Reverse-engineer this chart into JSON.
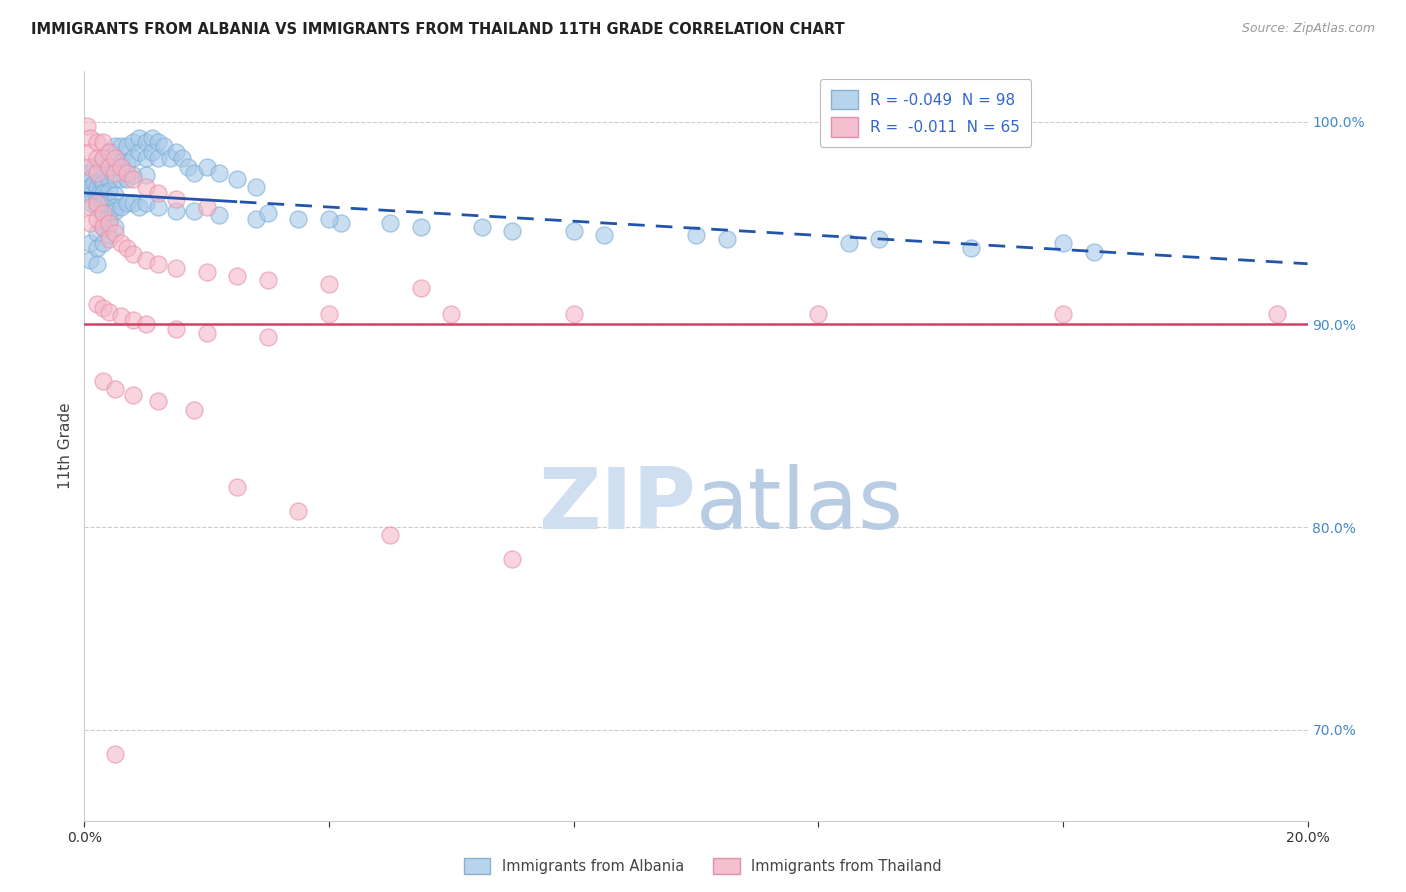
{
  "title": "IMMIGRANTS FROM ALBANIA VS IMMIGRANTS FROM THAILAND 11TH GRADE CORRELATION CHART",
  "source": "Source: ZipAtlas.com",
  "ylabel": "11th Grade",
  "legend_albania": "R = -0.049  N = 98",
  "legend_thailand": "R =  -0.011  N = 65",
  "albania_color": "#a8c8e8",
  "albania_edge": "#7aaed6",
  "thailand_color": "#f4b8c8",
  "thailand_edge": "#e890a8",
  "trendline_albania_color": "#2255aa",
  "trendline_thailand_color": "#cc4466",
  "background_color": "#ffffff",
  "grid_color": "#cccccc",
  "watermark_color": "#d0dff0",
  "xlim": [
    0.0,
    0.2
  ],
  "ylim": [
    0.655,
    1.025
  ],
  "albania_x": [
    0.0005,
    0.001,
    0.001,
    0.001,
    0.001,
    0.0015,
    0.0015,
    0.002,
    0.002,
    0.002,
    0.002,
    0.0025,
    0.0025,
    0.0025,
    0.003,
    0.003,
    0.003,
    0.003,
    0.003,
    0.003,
    0.003,
    0.004,
    0.004,
    0.004,
    0.004,
    0.004,
    0.004,
    0.005,
    0.005,
    0.005,
    0.005,
    0.005,
    0.006,
    0.006,
    0.006,
    0.007,
    0.007,
    0.007,
    0.008,
    0.008,
    0.008,
    0.009,
    0.009,
    0.01,
    0.01,
    0.01,
    0.011,
    0.011,
    0.012,
    0.012,
    0.013,
    0.014,
    0.015,
    0.016,
    0.017,
    0.018,
    0.02,
    0.022,
    0.025,
    0.028,
    0.001,
    0.001,
    0.002,
    0.002,
    0.002,
    0.003,
    0.003,
    0.004,
    0.004,
    0.005,
    0.005,
    0.006,
    0.007,
    0.008,
    0.009,
    0.01,
    0.012,
    0.015,
    0.018,
    0.022,
    0.028,
    0.035,
    0.042,
    0.055,
    0.07,
    0.085,
    0.105,
    0.125,
    0.145,
    0.165,
    0.03,
    0.04,
    0.05,
    0.065,
    0.08,
    0.1,
    0.13,
    0.16
  ],
  "albania_y": [
    0.975,
    0.972,
    0.968,
    0.964,
    0.96,
    0.978,
    0.97,
    0.975,
    0.968,
    0.962,
    0.958,
    0.98,
    0.972,
    0.965,
    0.982,
    0.976,
    0.97,
    0.965,
    0.96,
    0.955,
    0.95,
    0.985,
    0.978,
    0.972,
    0.966,
    0.96,
    0.955,
    0.988,
    0.98,
    0.972,
    0.964,
    0.958,
    0.988,
    0.98,
    0.972,
    0.988,
    0.98,
    0.972,
    0.99,
    0.982,
    0.974,
    0.992,
    0.985,
    0.99,
    0.982,
    0.974,
    0.992,
    0.985,
    0.99,
    0.982,
    0.988,
    0.982,
    0.985,
    0.982,
    0.978,
    0.975,
    0.978,
    0.975,
    0.972,
    0.968,
    0.94,
    0.932,
    0.945,
    0.938,
    0.93,
    0.948,
    0.94,
    0.952,
    0.944,
    0.956,
    0.948,
    0.958,
    0.96,
    0.96,
    0.958,
    0.96,
    0.958,
    0.956,
    0.956,
    0.954,
    0.952,
    0.952,
    0.95,
    0.948,
    0.946,
    0.944,
    0.942,
    0.94,
    0.938,
    0.936,
    0.955,
    0.952,
    0.95,
    0.948,
    0.946,
    0.944,
    0.942,
    0.94
  ],
  "thailand_x": [
    0.0005,
    0.001,
    0.001,
    0.001,
    0.002,
    0.002,
    0.002,
    0.003,
    0.003,
    0.004,
    0.004,
    0.005,
    0.005,
    0.006,
    0.007,
    0.008,
    0.01,
    0.012,
    0.015,
    0.02,
    0.001,
    0.001,
    0.002,
    0.002,
    0.003,
    0.003,
    0.004,
    0.004,
    0.005,
    0.006,
    0.007,
    0.008,
    0.01,
    0.012,
    0.015,
    0.02,
    0.025,
    0.03,
    0.04,
    0.055,
    0.002,
    0.003,
    0.004,
    0.006,
    0.008,
    0.01,
    0.015,
    0.02,
    0.03,
    0.003,
    0.005,
    0.008,
    0.012,
    0.018,
    0.04,
    0.06,
    0.08,
    0.12,
    0.16,
    0.195,
    0.025,
    0.035,
    0.05,
    0.07,
    0.005
  ],
  "thailand_y": [
    0.998,
    0.992,
    0.985,
    0.978,
    0.99,
    0.982,
    0.975,
    0.99,
    0.982,
    0.985,
    0.978,
    0.982,
    0.975,
    0.978,
    0.975,
    0.972,
    0.968,
    0.965,
    0.962,
    0.958,
    0.958,
    0.95,
    0.96,
    0.952,
    0.955,
    0.948,
    0.95,
    0.942,
    0.945,
    0.94,
    0.938,
    0.935,
    0.932,
    0.93,
    0.928,
    0.926,
    0.924,
    0.922,
    0.92,
    0.918,
    0.91,
    0.908,
    0.906,
    0.904,
    0.902,
    0.9,
    0.898,
    0.896,
    0.894,
    0.872,
    0.868,
    0.865,
    0.862,
    0.858,
    0.905,
    0.905,
    0.905,
    0.905,
    0.905,
    0.905,
    0.82,
    0.808,
    0.796,
    0.784,
    0.688
  ],
  "trendline_solid_end": 0.025
}
